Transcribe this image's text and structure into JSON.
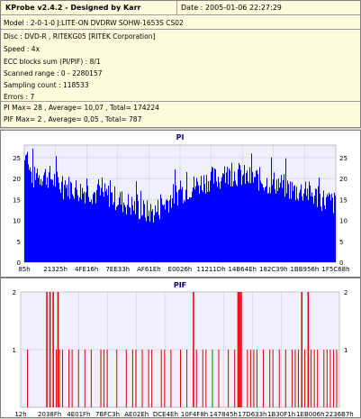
{
  "info": {
    "title": "KProbe v2.4.2 - Designed by Karr",
    "date": "Date : 2005-01-06 22:27:29",
    "lines": [
      "Model : 2-0-1-0 J:LITE-ON DVDRW SOHW-1653S CS02",
      "Disc : DVD-R , RITEKG05 [RITEK Corporation]",
      "Speed : 4x",
      "ECC blocks sum (PI/PIF) : 8/1",
      "Scanned range : 0 - 2280157",
      "Sampling count : 118533",
      "Errors : 7",
      "PI Max= 28 , Average= 10,07 , Total= 174224",
      "PIF Max= 2 , Average= 0,05 , Total= 787"
    ]
  },
  "colors": {
    "pi_bar": "#0000ff",
    "pif_bar": "#dd0000",
    "pif_green": "#00aa00",
    "plot_bg": "#f0f0fc",
    "title_color": "#000080"
  },
  "chart_data": [
    {
      "type": "bar",
      "title": "PI",
      "ylim": [
        0,
        28
      ],
      "yticks": [
        "0",
        "5",
        "10",
        "15",
        "20",
        "25"
      ],
      "xticks": [
        "85h",
        "21325h",
        "4FE16h",
        "7EE33h",
        "AF61Eh",
        "E0026h",
        "11211Dh",
        "14B64Eh",
        "182C39h",
        "1BB956h",
        "1F5C68h"
      ],
      "profile": [
        [
          0,
          24
        ],
        [
          0.03,
          20
        ],
        [
          0.06,
          21
        ],
        [
          0.09,
          20
        ],
        [
          0.12,
          18
        ],
        [
          0.15,
          18
        ],
        [
          0.18,
          17
        ],
        [
          0.21,
          17
        ],
        [
          0.24,
          16
        ],
        [
          0.27,
          16
        ],
        [
          0.3,
          15
        ],
        [
          0.33,
          14
        ],
        [
          0.36,
          13
        ],
        [
          0.39,
          12
        ],
        [
          0.42,
          12
        ],
        [
          0.45,
          14
        ],
        [
          0.48,
          16
        ],
        [
          0.51,
          17
        ],
        [
          0.54,
          18
        ],
        [
          0.57,
          19
        ],
        [
          0.6,
          20
        ],
        [
          0.63,
          20
        ],
        [
          0.66,
          21
        ],
        [
          0.69,
          21
        ],
        [
          0.72,
          20
        ],
        [
          0.75,
          20
        ],
        [
          0.78,
          19
        ],
        [
          0.81,
          19
        ],
        [
          0.84,
          18
        ],
        [
          0.87,
          17
        ],
        [
          0.9,
          17
        ],
        [
          0.93,
          16
        ],
        [
          0.96,
          15
        ],
        [
          1,
          14
        ]
      ],
      "grid": true
    },
    {
      "type": "bar",
      "title": "PIF",
      "ylim": [
        0,
        2
      ],
      "yticks": [
        "1",
        "2"
      ],
      "xticks": [
        "12h",
        "2038Fh",
        "4E01Fh",
        "7BFC3h",
        "AE02Eh",
        "DCE4Eh",
        "10F4F8h",
        "147845h",
        "17D633h",
        "1B30F1h",
        "1EB006h",
        "2236B7h"
      ],
      "twos": [
        0.08,
        0.09,
        0.1,
        0.115,
        0.54,
        0.68,
        0.685,
        0.69,
        0.88,
        0.9
      ],
      "ones": [
        0.02,
        0.11,
        0.12,
        0.13,
        0.15,
        0.16,
        0.18,
        0.2,
        0.22,
        0.25,
        0.26,
        0.27,
        0.3,
        0.33,
        0.35,
        0.36,
        0.38,
        0.4,
        0.41,
        0.44,
        0.45,
        0.47,
        0.5,
        0.52,
        0.55,
        0.57,
        0.58,
        0.6,
        0.62,
        0.65,
        0.67,
        0.71,
        0.72,
        0.73,
        0.74,
        0.76,
        0.78,
        0.79,
        0.81,
        0.83,
        0.85,
        0.86,
        0.87,
        0.89,
        0.91,
        0.92,
        0.93,
        0.95,
        0.96,
        0.97,
        0.98,
        0.99
      ],
      "green": [
        0.6
      ],
      "grid": true
    }
  ]
}
